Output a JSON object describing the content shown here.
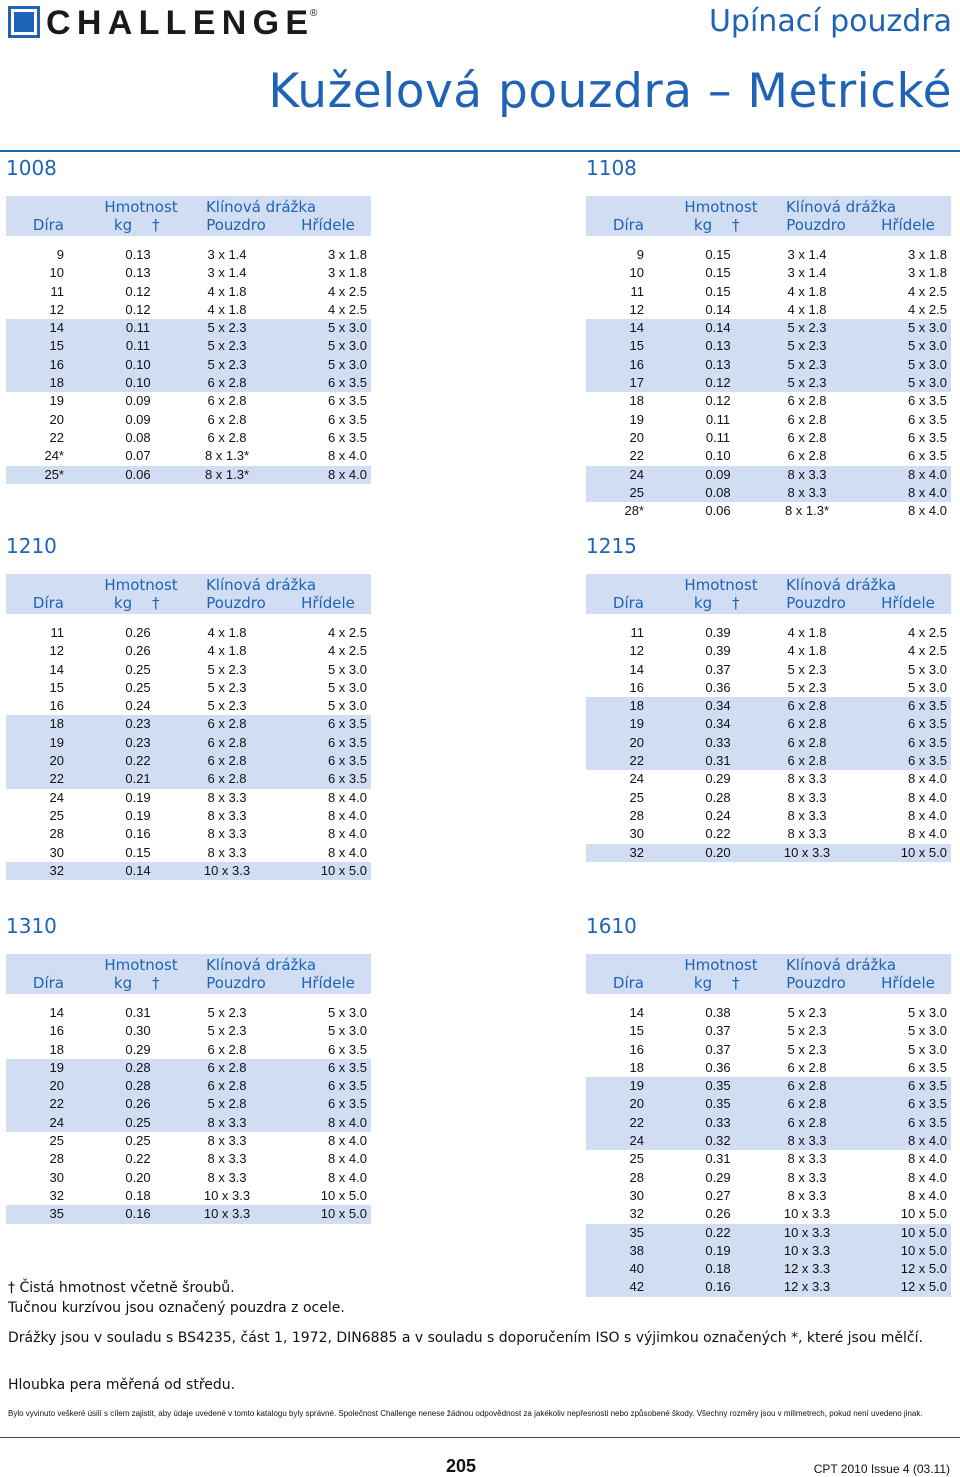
{
  "header": {
    "brand": "CHALLENGE",
    "brand_mark": "®",
    "section_title": "Upínací pouzdra",
    "page_title": "Kuželová pouzdra – Metrické"
  },
  "columns": {
    "hmotnost": "Hmotnost",
    "klinova": "Klínová drážka",
    "dira": "Díra",
    "kg": "kg",
    "dagger": "†",
    "pouzdro": "Pouzdro",
    "hridele": "Hřídele"
  },
  "colors": {
    "accent": "#1f63b6",
    "shade": "#d0ddf2"
  },
  "tables": [
    {
      "name": "1008",
      "rows": [
        [
          "9",
          "0.13",
          "3 x 1.4",
          "3 x 1.8"
        ],
        [
          "10",
          "0.13",
          "3 x 1.4",
          "3 x 1.8"
        ],
        [
          "11",
          "0.12",
          "4 x 1.8",
          "4 x 2.5"
        ],
        [
          "12",
          "0.12",
          "4 x 1.8",
          "4 x 2.5"
        ],
        [
          "14",
          "0.11",
          "5 x 2.3",
          "5 x 3.0"
        ],
        [
          "15",
          "0.11",
          "5 x 2.3",
          "5 x 3.0"
        ],
        [
          "16",
          "0.10",
          "5 x 2.3",
          "5 x 3.0"
        ],
        [
          "18",
          "0.10",
          "6 x 2.8",
          "6 x 3.5"
        ],
        [
          "19",
          "0.09",
          "6 x 2.8",
          "6 x 3.5"
        ],
        [
          "20",
          "0.09",
          "6 x 2.8",
          "6 x 3.5"
        ],
        [
          "22",
          "0.08",
          "6 x 2.8",
          "6 x 3.5"
        ],
        [
          "24*",
          "0.07",
          "8 x 1.3*",
          "8 x 4.0"
        ],
        [
          "25*",
          "0.06",
          "8 x 1.3*",
          "8 x 4.0"
        ]
      ],
      "shaded": [
        4,
        5,
        6,
        7,
        12
      ]
    },
    {
      "name": "1108",
      "rows": [
        [
          "9",
          "0.15",
          "3 x 1.4",
          "3 x 1.8"
        ],
        [
          "10",
          "0.15",
          "3 x 1.4",
          "3 x 1.8"
        ],
        [
          "11",
          "0.15",
          "4 x 1.8",
          "4 x 2.5"
        ],
        [
          "12",
          "0.14",
          "4 x 1.8",
          "4 x 2.5"
        ],
        [
          "14",
          "0.14",
          "5 x 2.3",
          "5 x 3.0"
        ],
        [
          "15",
          "0.13",
          "5 x 2.3",
          "5 x 3.0"
        ],
        [
          "16",
          "0.13",
          "5 x 2.3",
          "5 x 3.0"
        ],
        [
          "17",
          "0.12",
          "5 x 2.3",
          "5 x 3.0"
        ],
        [
          "18",
          "0.12",
          "6 x 2.8",
          "6 x 3.5"
        ],
        [
          "19",
          "0.11",
          "6 x 2.8",
          "6 x 3.5"
        ],
        [
          "20",
          "0.11",
          "6 x 2.8",
          "6 x 3.5"
        ],
        [
          "22",
          "0.10",
          "6 x 2.8",
          "6 x 3.5"
        ],
        [
          "24",
          "0.09",
          "8 x 3.3",
          "8 x 4.0"
        ],
        [
          "25",
          "0.08",
          "8 x 3.3",
          "8 x 4.0"
        ],
        [
          "28*",
          "0.06",
          "8 x 1.3*",
          "8 x 4.0"
        ]
      ],
      "shaded": [
        4,
        5,
        6,
        7,
        12,
        13
      ]
    },
    {
      "name": "1210",
      "rows": [
        [
          "11",
          "0.26",
          "4 x 1.8",
          "4 x 2.5"
        ],
        [
          "12",
          "0.26",
          "4 x 1.8",
          "4 x 2.5"
        ],
        [
          "14",
          "0.25",
          "5 x 2.3",
          "5 x 3.0"
        ],
        [
          "15",
          "0.25",
          "5 x 2.3",
          "5 x 3.0"
        ],
        [
          "16",
          "0.24",
          "5 x 2.3",
          "5 x 3.0"
        ],
        [
          "18",
          "0.23",
          "6 x 2.8",
          "6 x 3.5"
        ],
        [
          "19",
          "0.23",
          "6 x 2.8",
          "6 x 3.5"
        ],
        [
          "20",
          "0.22",
          "6 x 2.8",
          "6 x 3.5"
        ],
        [
          "22",
          "0.21",
          "6 x 2.8",
          "6 x 3.5"
        ],
        [
          "24",
          "0.19",
          "8 x 3.3",
          "8 x 4.0"
        ],
        [
          "25",
          "0.19",
          "8 x 3.3",
          "8 x 4.0"
        ],
        [
          "28",
          "0.16",
          "8 x 3.3",
          "8 x 4.0"
        ],
        [
          "30",
          "0.15",
          "8 x 3.3",
          "8 x 4.0"
        ],
        [
          "32",
          "0.14",
          "10 x 3.3",
          "10 x 5.0"
        ]
      ],
      "shaded": [
        5,
        6,
        7,
        8,
        13
      ]
    },
    {
      "name": "1215",
      "rows": [
        [
          "11",
          "0.39",
          "4 x 1.8",
          "4 x 2.5"
        ],
        [
          "12",
          "0.39",
          "4 x 1.8",
          "4 x 2.5"
        ],
        [
          "14",
          "0.37",
          "5 x 2.3",
          "5 x 3.0"
        ],
        [
          "16",
          "0.36",
          "5 x 2.3",
          "5 x 3.0"
        ],
        [
          "18",
          "0.34",
          "6 x 2.8",
          "6 x 3.5"
        ],
        [
          "19",
          "0.34",
          "6 x 2.8",
          "6 x 3.5"
        ],
        [
          "20",
          "0.33",
          "6 x 2.8",
          "6 x 3.5"
        ],
        [
          "22",
          "0.31",
          "6 x 2.8",
          "6 x 3.5"
        ],
        [
          "24",
          "0.29",
          "8 x 3.3",
          "8 x 4.0"
        ],
        [
          "25",
          "0.28",
          "8 x 3.3",
          "8 x 4.0"
        ],
        [
          "28",
          "0.24",
          "8 x 3.3",
          "8 x 4.0"
        ],
        [
          "30",
          "0.22",
          "8 x 3.3",
          "8 x 4.0"
        ],
        [
          "32",
          "0.20",
          "10 x 3.3",
          "10 x 5.0"
        ]
      ],
      "shaded": [
        4,
        5,
        6,
        7,
        12
      ]
    },
    {
      "name": "1310",
      "rows": [
        [
          "14",
          "0.31",
          "5 x 2.3",
          "5 x 3.0"
        ],
        [
          "16",
          "0.30",
          "5 x 2.3",
          "5 x 3.0"
        ],
        [
          "18",
          "0.29",
          "6 x 2.8",
          "6 x 3.5"
        ],
        [
          "19",
          "0.28",
          "6 x 2.8",
          "6 x 3.5"
        ],
        [
          "20",
          "0.28",
          "6 x 2.8",
          "6 x 3.5"
        ],
        [
          "22",
          "0.26",
          "5 x 2.8",
          "6 x 3.5"
        ],
        [
          "24",
          "0.25",
          "8 x 3.3",
          "8 x 4.0"
        ],
        [
          "25",
          "0.25",
          "8 x 3.3",
          "8 x 4.0"
        ],
        [
          "28",
          "0.22",
          "8 x 3.3",
          "8 x 4.0"
        ],
        [
          "30",
          "0.20",
          "8 x 3.3",
          "8 x 4.0"
        ],
        [
          "32",
          "0.18",
          "10 x 3.3",
          "10 x 5.0"
        ],
        [
          "35",
          "0.16",
          "10 x 3.3",
          "10 x 5.0"
        ]
      ],
      "shaded": [
        3,
        4,
        5,
        6,
        11
      ]
    },
    {
      "name": "1610",
      "rows": [
        [
          "14",
          "0.38",
          "5 x 2.3",
          "5 x 3.0"
        ],
        [
          "15",
          "0.37",
          "5 x 2.3",
          "5 x 3.0"
        ],
        [
          "16",
          "0.37",
          "5 x 2.3",
          "5 x 3.0"
        ],
        [
          "18",
          "0.36",
          "6 x 2.8",
          "6 x 3.5"
        ],
        [
          "19",
          "0.35",
          "6 x 2.8",
          "6 x 3.5"
        ],
        [
          "20",
          "0.35",
          "6 x 2.8",
          "6 x 3.5"
        ],
        [
          "22",
          "0.33",
          "6 x 2.8",
          "6 x 3.5"
        ],
        [
          "24",
          "0.32",
          "8 x 3.3",
          "8 x 4.0"
        ],
        [
          "25",
          "0.31",
          "8 x 3.3",
          "8 x 4.0"
        ],
        [
          "28",
          "0.29",
          "8 x 3.3",
          "8 x 4.0"
        ],
        [
          "30",
          "0.27",
          "8 x 3.3",
          "8 x 4.0"
        ],
        [
          "32",
          "0.26",
          "10 x 3.3",
          "10 x 5.0"
        ],
        [
          "35",
          "0.22",
          "10 x 3.3",
          "10 x 5.0"
        ],
        [
          "38",
          "0.19",
          "10 x 3.3",
          "10 x 5.0"
        ],
        [
          "40",
          "0.18",
          "12 x 3.3",
          "12 x 5.0"
        ],
        [
          "42",
          "0.16",
          "12 x 3.3",
          "12 x 5.0"
        ]
      ],
      "shaded": [
        4,
        5,
        6,
        7,
        12,
        13,
        14,
        15
      ]
    }
  ],
  "notes": {
    "net_weight": "† Čistá hmotnost včetně šroubů.",
    "steel": "Tučnou kurzívou jsou označený pouzdra z ocele.",
    "standards": "Drážky jsou v souladu s BS4235, část 1, 1972, DIN6885 a v souladu s  doporučením ISO s výjimkou označených *, které jsou mělčí.",
    "depth": "Hloubka pera měřená od středu.",
    "disclaimer": "Bylo vyvinuto veškeré úsilí s cílem zajistit, aby údaje uvedené v tomto katalogu byly správné. Společnost Challenge nenese žádnou odpovědnost za jakékoliv nepřesnosti nebo způsobené škody.    Všechny rozměry jsou v milimetrech, pokud není uvedeno jinak."
  },
  "footer": {
    "page_number": "205",
    "issue": "CPT 2010 Issue 4 (03.11)"
  }
}
